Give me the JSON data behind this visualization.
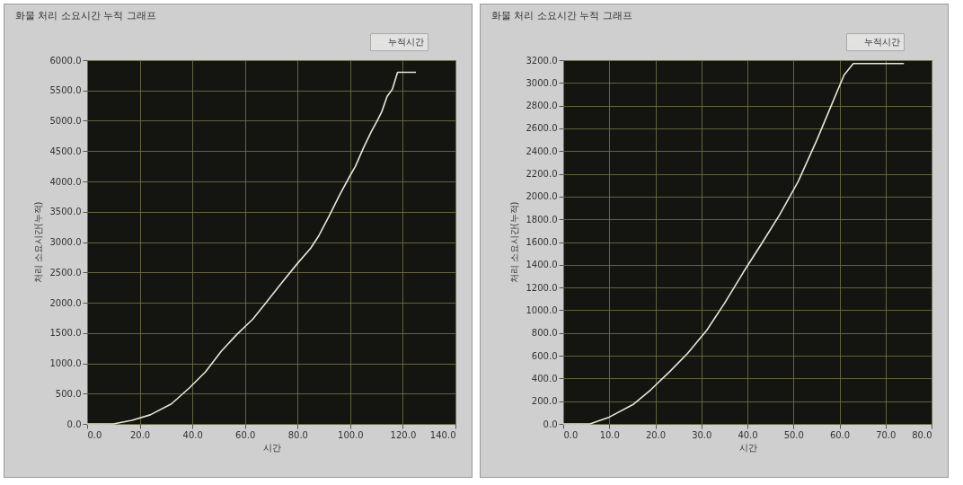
{
  "chart_data": [
    {
      "type": "line",
      "title": "화물 처리 소요시간 누적 그래프",
      "xlabel": "시간",
      "ylabel": "처리 소요시간(누적)",
      "legend": "top right",
      "grid": true,
      "marker": "none",
      "line_style": "solid",
      "x": [
        0,
        10,
        17,
        24,
        32,
        39,
        45,
        51,
        57,
        63,
        68,
        74,
        80,
        85,
        88,
        92,
        96,
        100,
        102,
        105,
        108,
        110,
        112,
        114,
        116,
        118,
        122,
        125
      ],
      "series": [
        {
          "name": "누적시간",
          "color": "#e6e6d8",
          "values": [
            0,
            0,
            60,
            150,
            330,
            600,
            860,
            1200,
            1480,
            1730,
            2000,
            2330,
            2650,
            2900,
            3100,
            3430,
            3780,
            4100,
            4250,
            4550,
            4820,
            4980,
            5150,
            5400,
            5520,
            5800,
            5800,
            5800
          ]
        }
      ],
      "xlim": [
        0,
        140
      ],
      "xticks": [
        {
          "value": 0,
          "label": "0.0"
        },
        {
          "value": 20,
          "label": "20.0"
        },
        {
          "value": 40,
          "label": "40.0"
        },
        {
          "value": 60,
          "label": "60.0"
        },
        {
          "value": 80,
          "label": "80.0"
        },
        {
          "value": 100,
          "label": "100.0"
        },
        {
          "value": 120,
          "label": "120.0"
        },
        {
          "value": 140,
          "label": "140.0"
        }
      ],
      "ylim": [
        0,
        6000
      ],
      "yticks": [
        {
          "value": 0,
          "label": "0.0"
        },
        {
          "value": 500,
          "label": "500.0"
        },
        {
          "value": 1000,
          "label": "1000.0"
        },
        {
          "value": 1500,
          "label": "1500.0"
        },
        {
          "value": 2000,
          "label": "2000.0"
        },
        {
          "value": 2500,
          "label": "2500.0"
        },
        {
          "value": 3000,
          "label": "3000.0"
        },
        {
          "value": 3500,
          "label": "3500.0"
        },
        {
          "value": 4000,
          "label": "4000.0"
        },
        {
          "value": 4500,
          "label": "4500.0"
        },
        {
          "value": 5000,
          "label": "5000.0"
        },
        {
          "value": 5500,
          "label": "5500.0"
        },
        {
          "value": 6000,
          "label": "6000.0"
        }
      ]
    },
    {
      "type": "line",
      "title": "화물 처리 소요시간 누적 그래프",
      "xlabel": "시간",
      "ylabel": "처리 소요시간(누적)",
      "legend": "top right",
      "grid": true,
      "marker": "none",
      "line_style": "solid",
      "x": [
        0,
        5.8,
        10,
        15.3,
        19,
        23.2,
        27,
        31.2,
        35,
        39.1,
        43,
        47,
        51,
        55,
        58,
        61,
        63,
        68,
        74
      ],
      "series": [
        {
          "name": "누적시간",
          "color": "#e6e6d8",
          "values": [
            0,
            0,
            60,
            174,
            300,
            463,
            620,
            826,
            1060,
            1333,
            1580,
            1840,
            2130,
            2490,
            2780,
            3070,
            3170,
            3170,
            3170
          ]
        }
      ],
      "xlim": [
        0,
        80
      ],
      "xticks": [
        {
          "value": 0,
          "label": "0.0"
        },
        {
          "value": 10,
          "label": "10.0"
        },
        {
          "value": 20,
          "label": "20.0"
        },
        {
          "value": 30,
          "label": "30.0"
        },
        {
          "value": 40,
          "label": "40.0"
        },
        {
          "value": 50,
          "label": "50.0"
        },
        {
          "value": 60,
          "label": "60.0"
        },
        {
          "value": 70,
          "label": "70.0"
        },
        {
          "value": 80,
          "label": "80.0"
        }
      ],
      "ylim": [
        0,
        3200
      ],
      "yticks": [
        {
          "value": 0,
          "label": "0.0"
        },
        {
          "value": 200,
          "label": "200.0"
        },
        {
          "value": 400,
          "label": "400.0"
        },
        {
          "value": 600,
          "label": "600.0"
        },
        {
          "value": 800,
          "label": "800.0"
        },
        {
          "value": 1000,
          "label": "1000.0"
        },
        {
          "value": 1200,
          "label": "1200.0"
        },
        {
          "value": 1400,
          "label": "1400.0"
        },
        {
          "value": 1600,
          "label": "1600.0"
        },
        {
          "value": 1800,
          "label": "1800.0"
        },
        {
          "value": 2000,
          "label": "2000.0"
        },
        {
          "value": 2200,
          "label": "2200.0"
        },
        {
          "value": 2400,
          "label": "2400.0"
        },
        {
          "value": 2600,
          "label": "2600.0"
        },
        {
          "value": 2800,
          "label": "2800.0"
        },
        {
          "value": 3000,
          "label": "3000.0"
        },
        {
          "value": 3200,
          "label": "3200.0"
        }
      ]
    }
  ]
}
